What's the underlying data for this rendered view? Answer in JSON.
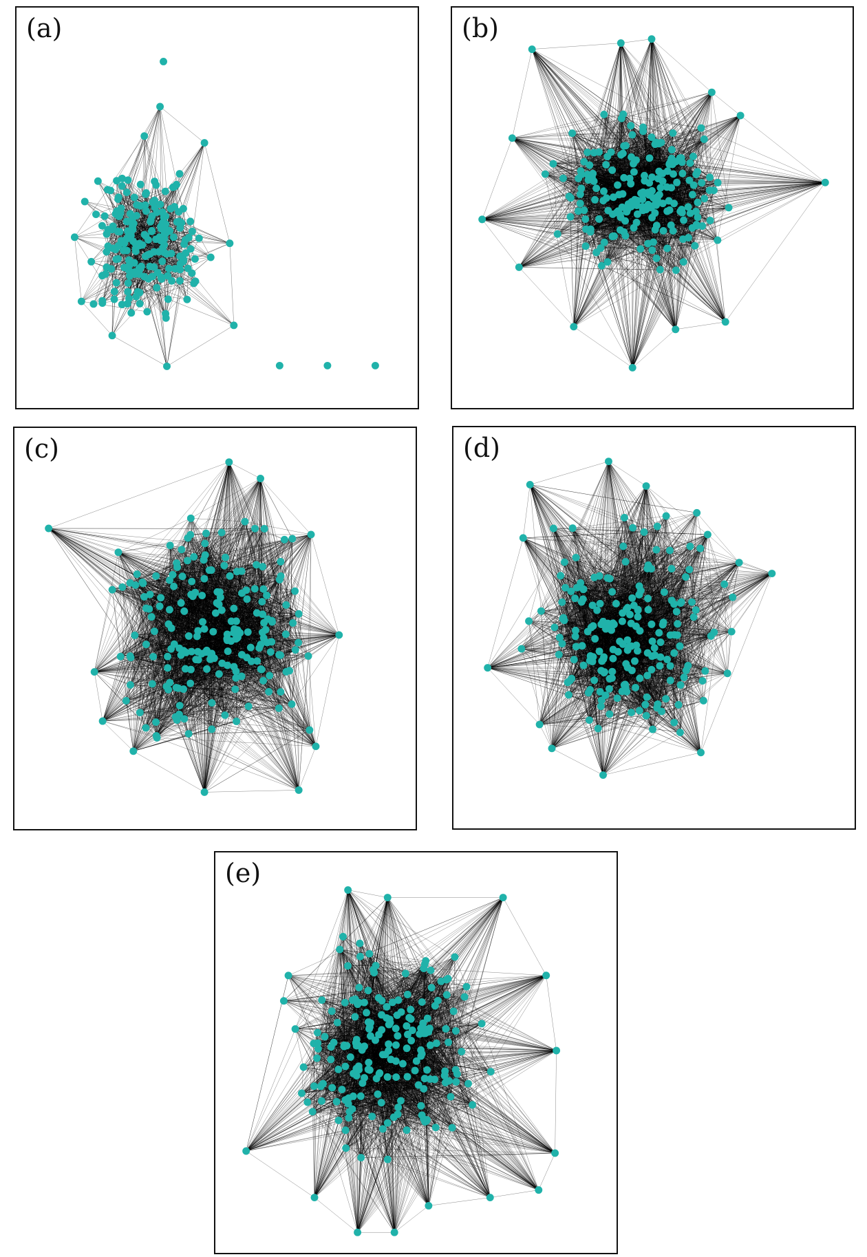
{
  "panels": [
    {
      "id": "a",
      "label": "(a)"
    },
    {
      "id": "b",
      "label": "(b)"
    },
    {
      "id": "c",
      "label": "(c)"
    },
    {
      "id": "d",
      "label": "(d)"
    },
    {
      "id": "e",
      "label": "(e)"
    }
  ],
  "colors": {
    "node": "#20b2aa",
    "edge": "#000000",
    "frame": "#111111"
  }
}
